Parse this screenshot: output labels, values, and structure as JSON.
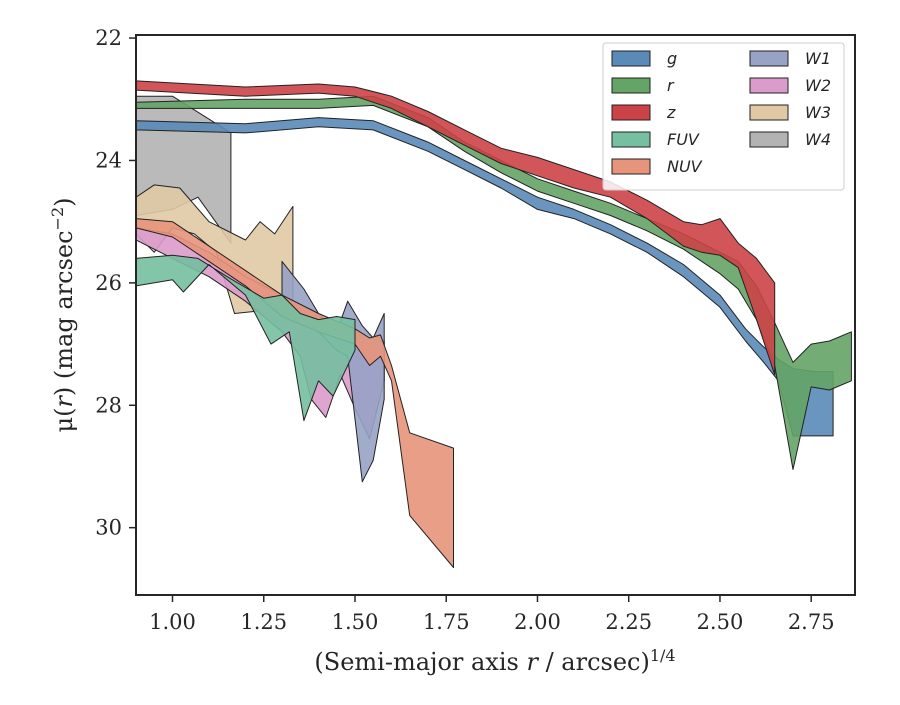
{
  "chart_data": {
    "type": "area",
    "title": "",
    "xlabel_prefix": "(Semi-major axis ",
    "xlabel_var": "r",
    "xlabel_suffix": " / arcsec)",
    "xlabel_sup": "1/4",
    "ylabel_prefix": "μ(",
    "ylabel_var": "r",
    "ylabel_mid": ") (mag arcsec",
    "ylabel_sup": "−2",
    "ylabel_suffix": ")",
    "xlim": [
      0.9,
      2.87
    ],
    "ylim": [
      31.1,
      21.95
    ],
    "y_inverted": true,
    "x_ticks": [
      "1.00",
      "1.25",
      "1.50",
      "1.75",
      "2.00",
      "2.25",
      "2.50",
      "2.75"
    ],
    "y_ticks": [
      "22",
      "24",
      "26",
      "28",
      "30"
    ],
    "grid": false,
    "legend_position": "top-right",
    "legend_columns": 2,
    "series": [
      {
        "name": "W4",
        "color": "#b3b3b3",
        "upper": [
          [
            0.9,
            22.95
          ],
          [
            1.0,
            22.95
          ],
          [
            1.16,
            23.55
          ]
        ],
        "lower": [
          [
            0.9,
            24.9
          ],
          [
            1.0,
            24.8
          ],
          [
            1.07,
            24.6
          ],
          [
            1.16,
            25.35
          ]
        ]
      },
      {
        "name": "W3",
        "color": "#e0c9a4",
        "upper": [
          [
            0.9,
            24.6
          ],
          [
            0.95,
            24.4
          ],
          [
            1.02,
            24.45
          ],
          [
            1.1,
            25.0
          ],
          [
            1.2,
            25.3
          ],
          [
            1.24,
            25.0
          ],
          [
            1.28,
            25.2
          ],
          [
            1.33,
            24.75
          ]
        ],
        "lower": [
          [
            0.9,
            25.2
          ],
          [
            0.95,
            25.5
          ],
          [
            1.0,
            25.1
          ],
          [
            1.06,
            25.2
          ],
          [
            1.12,
            25.5
          ],
          [
            1.17,
            26.5
          ],
          [
            1.25,
            26.45
          ],
          [
            1.33,
            26.3
          ]
        ]
      },
      {
        "name": "W2",
        "color": "#db9bcb",
        "upper": [
          [
            0.9,
            25.1
          ],
          [
            1.0,
            25.2
          ],
          [
            1.1,
            25.5
          ],
          [
            1.2,
            25.9
          ],
          [
            1.3,
            26.2
          ],
          [
            1.38,
            26.6
          ],
          [
            1.43,
            26.8
          ],
          [
            1.47,
            26.7
          ],
          [
            1.52,
            27.0
          ],
          [
            1.58,
            26.95
          ]
        ],
        "lower": [
          [
            0.9,
            25.3
          ],
          [
            1.0,
            25.6
          ],
          [
            1.1,
            25.9
          ],
          [
            1.2,
            26.3
          ],
          [
            1.3,
            26.8
          ],
          [
            1.35,
            27.2
          ],
          [
            1.38,
            27.9
          ],
          [
            1.42,
            28.2
          ],
          [
            1.46,
            27.5
          ],
          [
            1.5,
            28.05
          ],
          [
            1.54,
            28.55
          ],
          [
            1.58,
            27.6
          ]
        ]
      },
      {
        "name": "W1",
        "color": "#97a2c4",
        "upper": [
          [
            1.3,
            25.65
          ],
          [
            1.36,
            26.1
          ],
          [
            1.4,
            26.5
          ],
          [
            1.45,
            26.8
          ],
          [
            1.48,
            26.3
          ],
          [
            1.52,
            26.7
          ],
          [
            1.55,
            26.9
          ],
          [
            1.58,
            26.5
          ]
        ],
        "lower": [
          [
            1.3,
            26.2
          ],
          [
            1.36,
            26.6
          ],
          [
            1.4,
            26.8
          ],
          [
            1.45,
            27.1
          ],
          [
            1.48,
            27.2
          ],
          [
            1.52,
            29.25
          ],
          [
            1.55,
            28.9
          ],
          [
            1.58,
            27.9
          ]
        ]
      },
      {
        "name": "NUV",
        "color": "#e7957a",
        "upper": [
          [
            0.9,
            24.95
          ],
          [
            1.0,
            25.0
          ],
          [
            1.1,
            25.4
          ],
          [
            1.2,
            25.8
          ],
          [
            1.3,
            26.2
          ],
          [
            1.4,
            26.5
          ],
          [
            1.5,
            26.75
          ],
          [
            1.54,
            26.9
          ],
          [
            1.57,
            26.85
          ],
          [
            1.6,
            27.35
          ],
          [
            1.65,
            28.45
          ],
          [
            1.77,
            28.7
          ]
        ],
        "lower": [
          [
            0.9,
            25.1
          ],
          [
            1.0,
            25.25
          ],
          [
            1.1,
            25.65
          ],
          [
            1.2,
            26.05
          ],
          [
            1.3,
            26.55
          ],
          [
            1.4,
            26.8
          ],
          [
            1.5,
            27.0
          ],
          [
            1.54,
            27.35
          ],
          [
            1.57,
            27.2
          ],
          [
            1.6,
            27.6
          ],
          [
            1.65,
            29.8
          ],
          [
            1.77,
            30.65
          ]
        ]
      },
      {
        "name": "FUV",
        "color": "#76bfa0",
        "upper": [
          [
            0.9,
            25.6
          ],
          [
            1.0,
            25.55
          ],
          [
            1.07,
            25.6
          ],
          [
            1.15,
            25.9
          ],
          [
            1.25,
            26.25
          ],
          [
            1.3,
            26.2
          ],
          [
            1.35,
            26.5
          ],
          [
            1.4,
            26.6
          ],
          [
            1.45,
            26.55
          ],
          [
            1.5,
            26.6
          ]
        ],
        "lower": [
          [
            0.9,
            26.05
          ],
          [
            1.0,
            25.95
          ],
          [
            1.03,
            26.15
          ],
          [
            1.1,
            25.7
          ],
          [
            1.2,
            26.2
          ],
          [
            1.27,
            27.0
          ],
          [
            1.32,
            26.8
          ],
          [
            1.36,
            28.25
          ],
          [
            1.4,
            27.6
          ],
          [
            1.44,
            27.85
          ],
          [
            1.5,
            27.1
          ]
        ]
      },
      {
        "name": "g",
        "color": "#5a8ab8",
        "upper": [
          [
            0.9,
            23.35
          ],
          [
            1.2,
            23.4
          ],
          [
            1.4,
            23.3
          ],
          [
            1.55,
            23.35
          ],
          [
            1.7,
            23.7
          ],
          [
            1.8,
            24.0
          ],
          [
            1.9,
            24.3
          ],
          [
            2.0,
            24.6
          ],
          [
            2.1,
            24.8
          ],
          [
            2.2,
            25.05
          ],
          [
            2.3,
            25.35
          ],
          [
            2.4,
            25.7
          ],
          [
            2.5,
            26.2
          ],
          [
            2.57,
            26.75
          ],
          [
            2.62,
            27.05
          ],
          [
            2.66,
            27.25
          ],
          [
            2.7,
            27.4
          ],
          [
            2.76,
            27.45
          ],
          [
            2.81,
            27.45
          ]
        ],
        "lower": [
          [
            0.9,
            23.5
          ],
          [
            1.2,
            23.55
          ],
          [
            1.4,
            23.45
          ],
          [
            1.55,
            23.5
          ],
          [
            1.7,
            23.85
          ],
          [
            1.8,
            24.15
          ],
          [
            1.9,
            24.45
          ],
          [
            2.0,
            24.8
          ],
          [
            2.1,
            24.95
          ],
          [
            2.2,
            25.2
          ],
          [
            2.3,
            25.5
          ],
          [
            2.4,
            25.9
          ],
          [
            2.5,
            26.4
          ],
          [
            2.57,
            26.95
          ],
          [
            2.62,
            27.3
          ],
          [
            2.66,
            27.6
          ],
          [
            2.7,
            28.5
          ],
          [
            2.76,
            28.5
          ],
          [
            2.81,
            28.5
          ]
        ]
      },
      {
        "name": "r",
        "color": "#64a466",
        "upper": [
          [
            0.9,
            23.05
          ],
          [
            1.2,
            23.0
          ],
          [
            1.4,
            23.0
          ],
          [
            1.55,
            22.95
          ],
          [
            1.7,
            23.3
          ],
          [
            1.8,
            23.7
          ],
          [
            1.9,
            24.0
          ],
          [
            2.0,
            24.3
          ],
          [
            2.1,
            24.5
          ],
          [
            2.2,
            24.7
          ],
          [
            2.3,
            24.95
          ],
          [
            2.4,
            25.2
          ],
          [
            2.5,
            25.5
          ],
          [
            2.55,
            25.65
          ],
          [
            2.6,
            26.05
          ],
          [
            2.65,
            26.65
          ],
          [
            2.7,
            27.3
          ],
          [
            2.75,
            27.0
          ],
          [
            2.8,
            26.95
          ],
          [
            2.86,
            26.8
          ]
        ],
        "lower": [
          [
            0.9,
            23.15
          ],
          [
            1.2,
            23.15
          ],
          [
            1.4,
            23.15
          ],
          [
            1.55,
            23.1
          ],
          [
            1.7,
            23.45
          ],
          [
            1.8,
            23.85
          ],
          [
            1.9,
            24.2
          ],
          [
            2.0,
            24.5
          ],
          [
            2.1,
            24.7
          ],
          [
            2.2,
            24.9
          ],
          [
            2.3,
            25.15
          ],
          [
            2.4,
            25.45
          ],
          [
            2.5,
            25.85
          ],
          [
            2.55,
            26.1
          ],
          [
            2.6,
            26.6
          ],
          [
            2.65,
            27.35
          ],
          [
            2.7,
            29.05
          ],
          [
            2.75,
            27.7
          ],
          [
            2.8,
            27.75
          ],
          [
            2.86,
            27.6
          ]
        ]
      },
      {
        "name": "z",
        "color": "#cc4347",
        "upper": [
          [
            0.9,
            22.7
          ],
          [
            1.2,
            22.8
          ],
          [
            1.4,
            22.75
          ],
          [
            1.5,
            22.8
          ],
          [
            1.6,
            22.95
          ],
          [
            1.7,
            23.2
          ],
          [
            1.8,
            23.5
          ],
          [
            1.9,
            23.8
          ],
          [
            2.0,
            23.95
          ],
          [
            2.1,
            24.15
          ],
          [
            2.2,
            24.35
          ],
          [
            2.3,
            24.65
          ],
          [
            2.4,
            25.0
          ],
          [
            2.45,
            25.05
          ],
          [
            2.5,
            24.95
          ],
          [
            2.55,
            25.35
          ],
          [
            2.6,
            25.6
          ],
          [
            2.65,
            26.0
          ]
        ],
        "lower": [
          [
            0.9,
            22.85
          ],
          [
            1.2,
            22.95
          ],
          [
            1.4,
            22.9
          ],
          [
            1.5,
            22.95
          ],
          [
            1.6,
            23.15
          ],
          [
            1.7,
            23.45
          ],
          [
            1.8,
            23.75
          ],
          [
            1.9,
            24.05
          ],
          [
            2.0,
            24.25
          ],
          [
            2.1,
            24.45
          ],
          [
            2.2,
            24.6
          ],
          [
            2.3,
            24.95
          ],
          [
            2.4,
            25.4
          ],
          [
            2.45,
            25.5
          ],
          [
            2.5,
            25.55
          ],
          [
            2.55,
            25.75
          ],
          [
            2.6,
            26.6
          ],
          [
            2.65,
            27.5
          ]
        ]
      }
    ],
    "legend_order": [
      "g",
      "r",
      "z",
      "FUV",
      "NUV",
      "W1",
      "W2",
      "W3",
      "W4"
    ]
  }
}
